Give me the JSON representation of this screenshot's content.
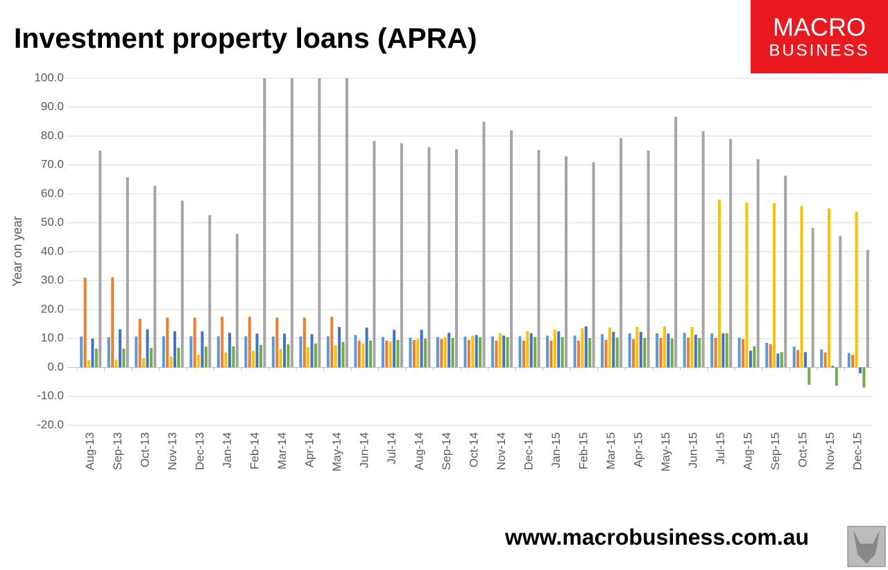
{
  "chart_data": {
    "type": "bar",
    "title": "Investment property loans (APRA)",
    "y_label": "Year on year",
    "logo": {
      "line1": "MACRO",
      "line2": "BUSINESS"
    },
    "footer": "www.macrobusiness.com.au",
    "categories": [
      "Aug-13",
      "Sep-13",
      "Oct-13",
      "Nov-13",
      "Dec-13",
      "Jan-14",
      "Feb-14",
      "Mar-14",
      "Apr-14",
      "May-14",
      "Jun-14",
      "Jul-14",
      "Aug-14",
      "Sep-14",
      "Oct-14",
      "Nov-14",
      "Dec-14",
      "Jan-15",
      "Feb-15",
      "Mar-15",
      "Apr-15",
      "May-15",
      "Jun-15",
      "Jul-15",
      "Aug-15",
      "Sep-15",
      "Oct-15",
      "Nov-15",
      "Dec-15"
    ],
    "series": [
      {
        "color": "#5b9bd5",
        "values": [
          10.7,
          10.5,
          10.7,
          10.8,
          10.8,
          10.8,
          10.8,
          10.7,
          10.7,
          10.8,
          11.2,
          10.5,
          10.3,
          10.5,
          10.7,
          10.7,
          10.8,
          11,
          11,
          11.5,
          11.8,
          11.8,
          12,
          11.8,
          10.3,
          8.5,
          7.2,
          6.2,
          5
        ]
      },
      {
        "color": "#ed7d31",
        "values": [
          31,
          31.2,
          16.8,
          17.2,
          17.2,
          17.5,
          17.5,
          17.2,
          17.2,
          17.5,
          9.3,
          9.3,
          9.5,
          9.8,
          9.5,
          9.3,
          9.3,
          9.3,
          9.3,
          9.5,
          9.8,
          10.2,
          10.3,
          10.2,
          9.8,
          8,
          6,
          5.2,
          4.3
        ]
      },
      {
        "color": "#ffc000",
        "values": [
          2.5,
          2.7,
          3.2,
          3.8,
          4.5,
          5.2,
          5.8,
          6.3,
          7,
          7.7,
          8.3,
          9,
          9.8,
          10.5,
          11,
          11.8,
          12.5,
          13,
          13.5,
          13.8,
          14,
          14.2,
          14,
          58,
          57,
          56.8,
          55.8,
          55,
          53.8
        ]
      },
      {
        "color": "#4472c4",
        "values": [
          10,
          13.2,
          13.2,
          12.5,
          12.5,
          12,
          11.7,
          11.7,
          11.5,
          14,
          13.8,
          13,
          13,
          12,
          11.2,
          11,
          11.8,
          12.5,
          14.2,
          12.3,
          12.3,
          11.7,
          11.3,
          11.8,
          5.8,
          4.8,
          5.3,
          0.5,
          -2
        ]
      },
      {
        "color": "#70ad47",
        "values": [
          6.5,
          6.5,
          6.7,
          6.8,
          7.2,
          7.3,
          7.8,
          8,
          8.3,
          8.8,
          9.3,
          9.5,
          10,
          10.2,
          10.5,
          10.5,
          10.5,
          10.5,
          10.2,
          10.3,
          10.2,
          10,
          10.2,
          11.8,
          7.3,
          5.3,
          -6,
          -6.3,
          -7
        ]
      },
      {
        "color": "#a5a5a5",
        "values": [
          75,
          65.8,
          62.8,
          57.7,
          52.7,
          46.2,
          100,
          100,
          100,
          100,
          78.3,
          77.5,
          76.2,
          75.5,
          85,
          82,
          75.2,
          73,
          71,
          79.3,
          75,
          86.7,
          81.7,
          79,
          72,
          66.3,
          48.3,
          45.5,
          40.7
        ]
      }
    ],
    "ylim": [
      -20,
      100
    ],
    "yticks": [
      {
        "value": -20,
        "label": "-20.0"
      },
      {
        "value": -10,
        "label": "-10.0"
      },
      {
        "value": 0,
        "label": "0.0"
      },
      {
        "value": 10,
        "label": "10.0"
      },
      {
        "value": 20,
        "label": "20.0"
      },
      {
        "value": 30,
        "label": "30.0"
      },
      {
        "value": 40,
        "label": "40.0"
      },
      {
        "value": 50,
        "label": "50.0"
      },
      {
        "value": 60,
        "label": "60.0"
      },
      {
        "value": 70,
        "label": "70.0"
      },
      {
        "value": 80,
        "label": "80.0"
      },
      {
        "value": 90,
        "label": "90.0"
      },
      {
        "value": 100,
        "label": "100.0"
      }
    ],
    "grid": true
  }
}
